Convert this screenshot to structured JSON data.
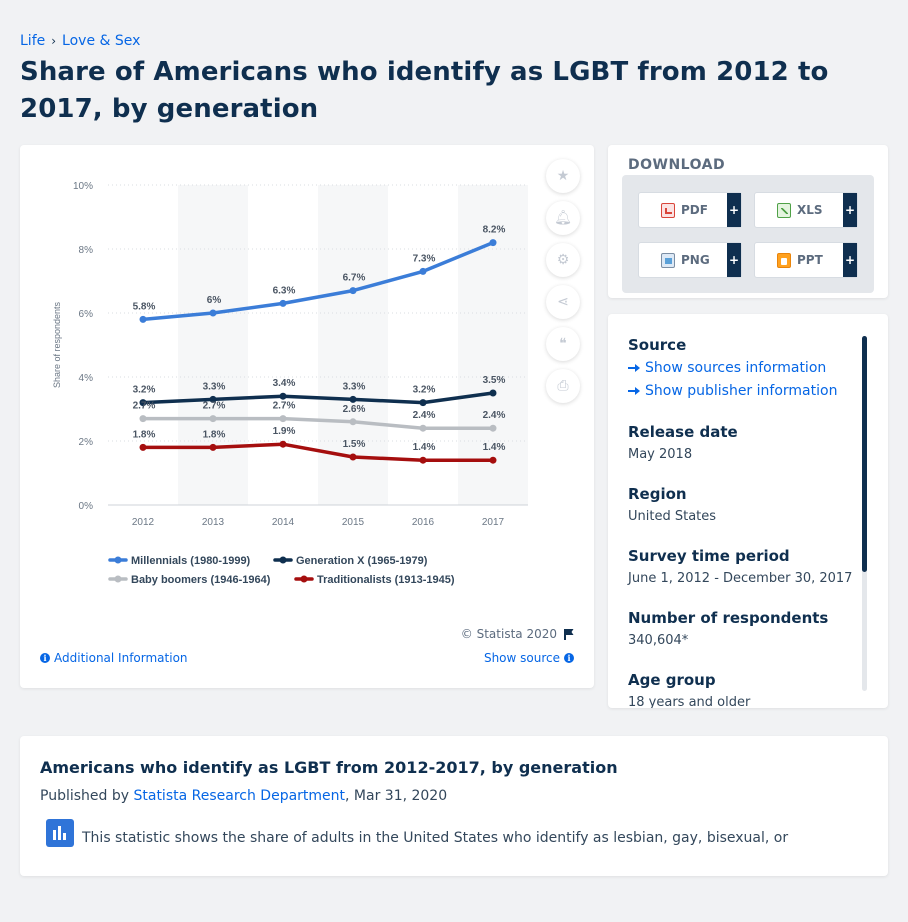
{
  "breadcrumb": {
    "item1": "Life",
    "item2": "Love & Sex",
    "separator": "›"
  },
  "page_title": "Share of Americans who identify as LGBT from 2012 to 2017, by generation",
  "chart_data": {
    "type": "line",
    "x": [
      "2012",
      "2013",
      "2014",
      "2015",
      "2016",
      "2017"
    ],
    "ylabel": "Share of respondents",
    "ylim": [
      0,
      10
    ],
    "yticks": [
      "0%",
      "2%",
      "4%",
      "6%",
      "8%",
      "10%"
    ],
    "grid": true,
    "legend_position": "bottom-left",
    "series": [
      {
        "name": "Millennials (1980-1999)",
        "color": "#3b7dd8",
        "values": [
          5.8,
          6,
          6.3,
          6.7,
          7.3,
          8.2
        ],
        "labels": [
          "5.8%",
          "6%",
          "6.3%",
          "6.7%",
          "7.3%",
          "8.2%"
        ]
      },
      {
        "name": "Generation X (1965-1979)",
        "color": "#0f2f4f",
        "values": [
          3.2,
          3.3,
          3.4,
          3.3,
          3.2,
          3.5
        ],
        "labels": [
          "3.2%",
          "3.3%",
          "3.4%",
          "3.3%",
          "3.2%",
          "3.5%"
        ]
      },
      {
        "name": "Baby boomers (1946-1964)",
        "color": "#b9bdc2",
        "values": [
          2.7,
          2.7,
          2.7,
          2.6,
          2.4,
          2.4
        ],
        "labels": [
          "2.7%",
          "2.7%",
          "2.7%",
          "2.6%",
          "2.4%",
          "2.4%"
        ]
      },
      {
        "name": "Traditionalists (1913-1945)",
        "color": "#a50e0e",
        "values": [
          1.8,
          1.8,
          1.9,
          1.5,
          1.4,
          1.4
        ],
        "labels": [
          "1.8%",
          "1.8%",
          "1.9%",
          "1.5%",
          "1.4%",
          "1.4%"
        ]
      }
    ]
  },
  "chart_footer": {
    "copyright": "© Statista 2020",
    "additional_info": "Additional Information",
    "show_source": "Show source"
  },
  "download": {
    "title": "DOWNLOAD",
    "buttons": [
      {
        "label": "PDF",
        "icon": "pdf-file-icon"
      },
      {
        "label": "XLS",
        "icon": "xls-file-icon"
      },
      {
        "label": "PNG",
        "icon": "png-file-icon"
      },
      {
        "label": "PPT",
        "icon": "ppt-file-icon"
      }
    ],
    "plus": "+"
  },
  "meta": {
    "source_head": "Source",
    "show_sources": "Show sources information",
    "show_publisher": "Show publisher information",
    "release_head": "Release date",
    "release_val": "May 2018",
    "region_head": "Region",
    "region_val": "United States",
    "survey_head": "Survey time period",
    "survey_val": "June 1, 2012 - December 30, 2017",
    "respondents_head": "Number of respondents",
    "respondents_val": "340,604*",
    "age_head": "Age group",
    "age_val": "18 years and older"
  },
  "description": {
    "title": "Americans who identify as LGBT from 2012-2017, by generation",
    "published_by": "Published by",
    "publisher": "Statista Research Department",
    "date": ", Mar 31, 2020",
    "text": "This statistic shows the share of adults in the United States who identify as lesbian, gay, bisexual, or"
  }
}
